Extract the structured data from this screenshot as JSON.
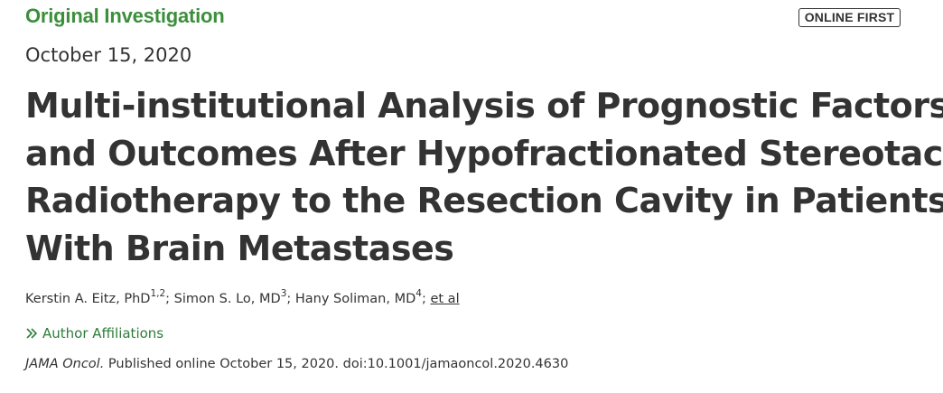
{
  "article": {
    "section_label": "Original Investigation",
    "badge": "ONLINE FIRST",
    "date": "October 15, 2020",
    "title_lines": [
      "Multi-institutional Analysis of Prognostic Factors",
      "and Outcomes After Hypofractionated Stereotactic",
      "Radiotherapy to the Resection Cavity in Patients",
      "With Brain Metastases"
    ],
    "authors": [
      {
        "name": "Kerstin A. Eitz, PhD",
        "affiliations": "1,2",
        "sep": "; "
      },
      {
        "name": "Simon S. Lo, MD",
        "affiliations": "3",
        "sep": "; "
      },
      {
        "name": "Hany Soliman, MD",
        "affiliations": "4",
        "sep": "; "
      }
    ],
    "et_al": "et al",
    "affiliations_toggle": "Author Affiliations",
    "affiliations_icon": "double-chevron-right-icon",
    "citation": {
      "journal": "JAMA Oncol.",
      "text": " Published online October 15, 2020. doi:10.1001/jamaoncol.2020.4630"
    }
  },
  "colors": {
    "section_label": "#3b8f3b",
    "link_green": "#2e7d3a",
    "text": "#333333"
  }
}
